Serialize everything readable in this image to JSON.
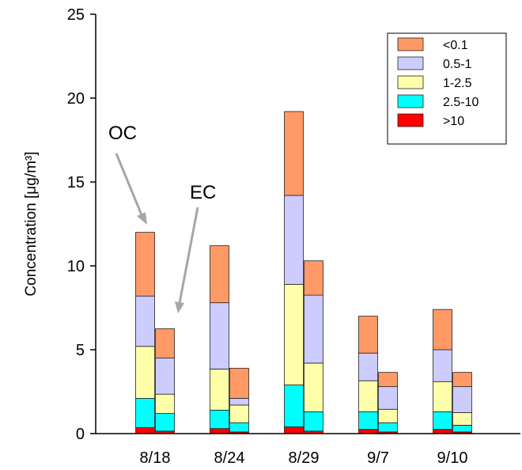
{
  "chart_data": {
    "type": "bar",
    "stacked": true,
    "ylabel": "Concentration [μg/m³]",
    "ylim": [
      0,
      25
    ],
    "yticks": [
      "0",
      "5",
      "10",
      "15",
      "20",
      "25"
    ],
    "categories": [
      "8/18",
      "8/24",
      "8/29",
      "9/7",
      "9/10"
    ],
    "bar_groups": [
      "OC",
      "EC"
    ],
    "series": [
      {
        "name": ">10",
        "color": "#ff0000",
        "OC": [
          0.35,
          0.3,
          0.4,
          0.25,
          0.25
        ],
        "EC": [
          0.15,
          0.1,
          0.15,
          0.1,
          0.1
        ]
      },
      {
        "name": "2.5-10",
        "color": "#00ffff",
        "OC": [
          1.75,
          1.1,
          2.5,
          1.05,
          1.05
        ],
        "EC": [
          1.05,
          0.55,
          1.15,
          0.55,
          0.4
        ]
      },
      {
        "name": "1-2.5",
        "color": "#ffffaa",
        "OC": [
          3.1,
          2.45,
          6.0,
          1.85,
          1.8
        ],
        "EC": [
          1.15,
          1.05,
          2.9,
          0.8,
          0.75
        ]
      },
      {
        "name": "0.5-1",
        "color": "#ccccff",
        "OC": [
          3.0,
          3.95,
          5.3,
          1.65,
          1.9
        ],
        "EC": [
          2.15,
          0.4,
          4.05,
          1.35,
          1.55
        ]
      },
      {
        "name": "<0.1",
        "color": "#ff9966",
        "OC": [
          3.8,
          3.4,
          5.0,
          2.2,
          2.4
        ],
        "EC": [
          1.75,
          1.8,
          2.05,
          0.85,
          0.85
        ]
      }
    ],
    "legend": [
      "<0.1",
      "0.5-1",
      "1-2.5",
      "2.5-10",
      ">10"
    ],
    "legend_position": "top-right",
    "annotations": [
      "OC",
      "EC"
    ],
    "grid": false
  }
}
